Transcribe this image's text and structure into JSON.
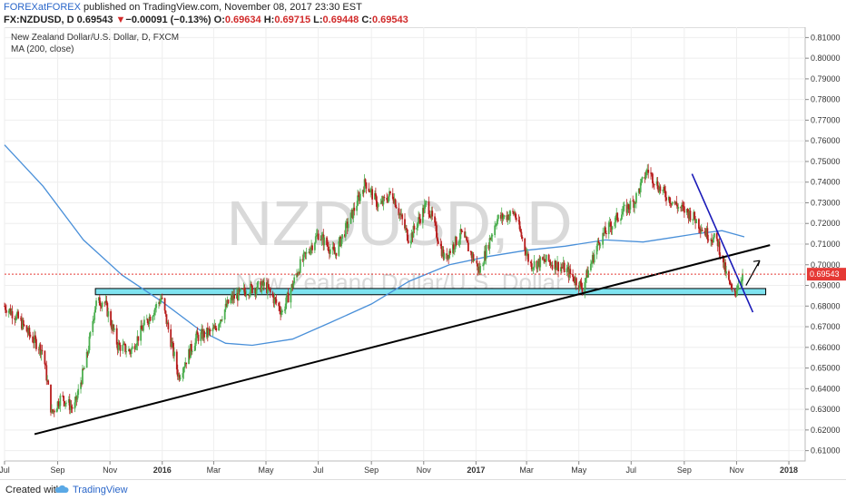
{
  "header": {
    "author": "FOREXatFOREX",
    "published": "published on TradingView.com, November 08, 2017 23:30 EST",
    "symbol": "FX:NZDUSD, D",
    "last": "0.69543",
    "change_arrow": "▼",
    "change": "−0.00091 (−0.13%)",
    "o_label": "O:",
    "o_value": "0.69634",
    "h_label": "H:",
    "h_value": "0.69715",
    "l_label": "L:",
    "l_value": "0.69448",
    "c_label": "C:",
    "c_value": "0.69543"
  },
  "footer": {
    "created": "Created with",
    "brand": "TradingView"
  },
  "colors": {
    "up": "#4caf50",
    "down": "#b71c1c",
    "ma": "#4a90d9",
    "support_zone": "#7fe3f0",
    "trendline_blue": "#1a1ab8",
    "price_line": "#e53935"
  },
  "chart_data": {
    "type": "candlestick",
    "title": "New Zealand Dollar/U.S. Dollar, D, FXCM",
    "indicator": "MA (200, close)",
    "watermark_symbol": "NZDUSD, D",
    "watermark_name": "New Zealand Dollar/U.S. Dollar",
    "last_price_label": "0.69543",
    "y_ticks": [
      "0.81000",
      "0.80000",
      "0.79000",
      "0.78000",
      "0.77000",
      "0.76000",
      "0.75000",
      "0.74000",
      "0.73000",
      "0.72000",
      "0.71000",
      "0.70000",
      "0.69000",
      "0.68000",
      "0.67000",
      "0.66000",
      "0.65000",
      "0.64000",
      "0.63000",
      "0.62000",
      "0.61000"
    ],
    "x_ticks": [
      "Jul",
      "Sep",
      "Nov",
      "2016",
      "Mar",
      "May",
      "Jul",
      "Sep",
      "Nov",
      "2017",
      "Mar",
      "May",
      "Jul",
      "Sep",
      "Nov",
      "2018"
    ],
    "ylim": [
      0.605,
      0.815
    ],
    "xlim": [
      "2015-07-01",
      "2018-01-20"
    ],
    "ma_200": [
      [
        "2015-07-01",
        0.758
      ],
      [
        "2015-08-15",
        0.738
      ],
      [
        "2015-10-01",
        0.712
      ],
      [
        "2015-11-15",
        0.695
      ],
      [
        "2016-01-01",
        0.682
      ],
      [
        "2016-02-15",
        0.668
      ],
      [
        "2016-03-15",
        0.662
      ],
      [
        "2016-04-15",
        0.661
      ],
      [
        "2016-06-01",
        0.664
      ],
      [
        "2016-07-15",
        0.672
      ],
      [
        "2016-09-01",
        0.681
      ],
      [
        "2016-10-15",
        0.692
      ],
      [
        "2016-12-01",
        0.7
      ],
      [
        "2017-01-15",
        0.704
      ],
      [
        "2017-03-01",
        0.707
      ],
      [
        "2017-04-15",
        0.709
      ],
      [
        "2017-06-01",
        0.712
      ],
      [
        "2017-07-15",
        0.711
      ],
      [
        "2017-08-15",
        0.713
      ],
      [
        "2017-09-15",
        0.715
      ],
      [
        "2017-10-15",
        0.7165
      ],
      [
        "2017-11-10",
        0.7135
      ]
    ],
    "price_path": [
      [
        "2015-07-01",
        0.68
      ],
      [
        "2015-07-15",
        0.675
      ],
      [
        "2015-08-01",
        0.665
      ],
      [
        "2015-08-15",
        0.658
      ],
      [
        "2015-08-25",
        0.628
      ],
      [
        "2015-09-05",
        0.636
      ],
      [
        "2015-09-20",
        0.63
      ],
      [
        "2015-10-05",
        0.655
      ],
      [
        "2015-10-15",
        0.681
      ],
      [
        "2015-10-25",
        0.683
      ],
      [
        "2015-11-10",
        0.661
      ],
      [
        "2015-11-25",
        0.658
      ],
      [
        "2015-12-10",
        0.67
      ],
      [
        "2015-12-31",
        0.684
      ],
      [
        "2016-01-20",
        0.646
      ],
      [
        "2016-02-10",
        0.665
      ],
      [
        "2016-03-01",
        0.668
      ],
      [
        "2016-03-20",
        0.683
      ],
      [
        "2016-04-10",
        0.688
      ],
      [
        "2016-04-30",
        0.69
      ],
      [
        "2016-05-20",
        0.677
      ],
      [
        "2016-06-10",
        0.7
      ],
      [
        "2016-07-01",
        0.715
      ],
      [
        "2016-07-20",
        0.705
      ],
      [
        "2016-08-10",
        0.725
      ],
      [
        "2016-08-25",
        0.74
      ],
      [
        "2016-09-10",
        0.728
      ],
      [
        "2016-09-25",
        0.735
      ],
      [
        "2016-10-15",
        0.712
      ],
      [
        "2016-11-05",
        0.73
      ],
      [
        "2016-11-25",
        0.703
      ],
      [
        "2016-12-15",
        0.715
      ],
      [
        "2017-01-05",
        0.697
      ],
      [
        "2017-01-25",
        0.722
      ],
      [
        "2017-02-15",
        0.725
      ],
      [
        "2017-03-05",
        0.7
      ],
      [
        "2017-03-25",
        0.702
      ],
      [
        "2017-04-15",
        0.698
      ],
      [
        "2017-05-05",
        0.689
      ],
      [
        "2017-05-25",
        0.712
      ],
      [
        "2017-06-15",
        0.723
      ],
      [
        "2017-07-05",
        0.731
      ],
      [
        "2017-07-20",
        0.746
      ],
      [
        "2017-08-05",
        0.736
      ],
      [
        "2017-08-25",
        0.728
      ],
      [
        "2017-09-10",
        0.724
      ],
      [
        "2017-09-25",
        0.716
      ],
      [
        "2017-10-10",
        0.711
      ],
      [
        "2017-10-20",
        0.695
      ],
      [
        "2017-10-28",
        0.685
      ],
      [
        "2017-11-08",
        0.6954
      ]
    ]
  }
}
